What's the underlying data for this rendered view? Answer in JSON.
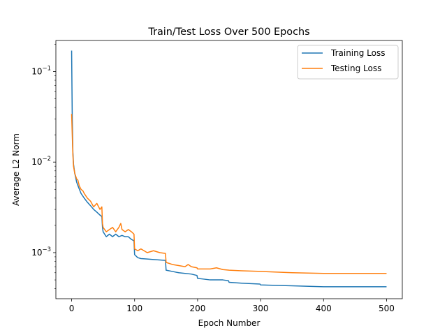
{
  "chart_data": {
    "type": "line",
    "title": "Train/Test Loss Over 500 Epochs",
    "xlabel": "Epoch Number",
    "ylabel": "Average L2 Norm",
    "xlim": [
      -25,
      525
    ],
    "ylim": [
      0.00031,
      0.22
    ],
    "yscale": "log",
    "grid": false,
    "legend_position": "top-right",
    "x_ticks": [
      0,
      100,
      200,
      300,
      400,
      500
    ],
    "x_tick_labels": [
      "0",
      "100",
      "200",
      "300",
      "400",
      "500"
    ],
    "y_major_ticks": [
      0.001,
      0.01,
      0.1
    ],
    "y_tick_labels": [
      {
        "base": "10",
        "exp": "−3"
      },
      {
        "base": "10",
        "exp": "−2"
      },
      {
        "base": "10",
        "exp": "−1"
      }
    ],
    "series": [
      {
        "name": "Training Loss",
        "color": "#1f77b4",
        "points": [
          [
            0,
            0.17
          ],
          [
            1,
            0.03
          ],
          [
            2,
            0.013
          ],
          [
            3,
            0.0095
          ],
          [
            5,
            0.0075
          ],
          [
            8,
            0.006
          ],
          [
            10,
            0.0055
          ],
          [
            15,
            0.0045
          ],
          [
            20,
            0.004
          ],
          [
            25,
            0.0036
          ],
          [
            30,
            0.0033
          ],
          [
            35,
            0.003
          ],
          [
            40,
            0.0028
          ],
          [
            45,
            0.0026
          ],
          [
            48,
            0.0025
          ],
          [
            49,
            0.0019
          ],
          [
            50,
            0.0017
          ],
          [
            55,
            0.0015
          ],
          [
            60,
            0.0016
          ],
          [
            65,
            0.0015
          ],
          [
            70,
            0.0016
          ],
          [
            75,
            0.0015
          ],
          [
            80,
            0.00155
          ],
          [
            85,
            0.0015
          ],
          [
            90,
            0.0015
          ],
          [
            95,
            0.0014
          ],
          [
            99,
            0.00135
          ],
          [
            100,
            0.00095
          ],
          [
            105,
            0.00088
          ],
          [
            110,
            0.00086
          ],
          [
            120,
            0.00085
          ],
          [
            130,
            0.00084
          ],
          [
            140,
            0.00083
          ],
          [
            149,
            0.00082
          ],
          [
            150,
            0.00064
          ],
          [
            160,
            0.00062
          ],
          [
            170,
            0.0006
          ],
          [
            180,
            0.00059
          ],
          [
            190,
            0.00058
          ],
          [
            199,
            0.00056
          ],
          [
            200,
            0.00052
          ],
          [
            210,
            0.00051
          ],
          [
            220,
            0.0005
          ],
          [
            240,
            0.0005
          ],
          [
            249,
            0.00049
          ],
          [
            250,
            0.00047
          ],
          [
            270,
            0.00046
          ],
          [
            299,
            0.00045
          ],
          [
            300,
            0.00044
          ],
          [
            350,
            0.00043
          ],
          [
            400,
            0.00042
          ],
          [
            450,
            0.00042
          ],
          [
            500,
            0.00042
          ]
        ]
      },
      {
        "name": "Testing Loss",
        "color": "#ff7f0e",
        "points": [
          [
            0,
            0.034
          ],
          [
            1,
            0.02
          ],
          [
            2,
            0.012
          ],
          [
            3,
            0.009
          ],
          [
            5,
            0.0075
          ],
          [
            8,
            0.0065
          ],
          [
            10,
            0.0063
          ],
          [
            12,
            0.0055
          ],
          [
            15,
            0.005
          ],
          [
            18,
            0.0048
          ],
          [
            20,
            0.0045
          ],
          [
            25,
            0.004
          ],
          [
            30,
            0.0037
          ],
          [
            35,
            0.0032
          ],
          [
            40,
            0.0035
          ],
          [
            45,
            0.003
          ],
          [
            48,
            0.0032
          ],
          [
            49,
            0.0021
          ],
          [
            50,
            0.0019
          ],
          [
            55,
            0.0017
          ],
          [
            60,
            0.0018
          ],
          [
            65,
            0.0019
          ],
          [
            70,
            0.0017
          ],
          [
            75,
            0.0019
          ],
          [
            78,
            0.0021
          ],
          [
            80,
            0.0018
          ],
          [
            85,
            0.0017
          ],
          [
            90,
            0.0018
          ],
          [
            95,
            0.0017
          ],
          [
            99,
            0.0016
          ],
          [
            100,
            0.0011
          ],
          [
            105,
            0.00105
          ],
          [
            110,
            0.0011
          ],
          [
            115,
            0.00105
          ],
          [
            120,
            0.001
          ],
          [
            130,
            0.00105
          ],
          [
            140,
            0.001
          ],
          [
            149,
            0.00098
          ],
          [
            150,
            0.00078
          ],
          [
            160,
            0.00074
          ],
          [
            170,
            0.00072
          ],
          [
            180,
            0.0007
          ],
          [
            185,
            0.00074
          ],
          [
            190,
            0.0007
          ],
          [
            199,
            0.00068
          ],
          [
            200,
            0.00066
          ],
          [
            220,
            0.00066
          ],
          [
            230,
            0.00068
          ],
          [
            240,
            0.00065
          ],
          [
            250,
            0.00064
          ],
          [
            270,
            0.00063
          ],
          [
            300,
            0.00062
          ],
          [
            350,
            0.0006
          ],
          [
            400,
            0.00059
          ],
          [
            450,
            0.00059
          ],
          [
            500,
            0.00059
          ]
        ]
      }
    ]
  }
}
